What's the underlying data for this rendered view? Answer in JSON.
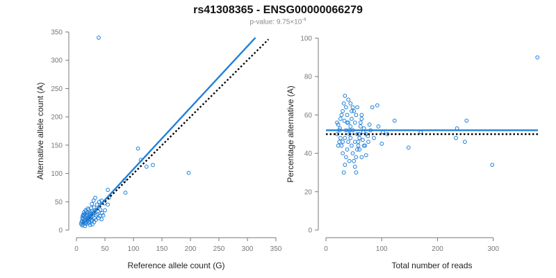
{
  "title": "rs41308365 - ENSG00000066279",
  "subtitle": {
    "prefix": "p-value: 9.75×10",
    "exponent": "-4"
  },
  "colors": {
    "points": "#1f7fd8",
    "fit": "#1f7fd8",
    "reference": "#000000",
    "axis": "#777777"
  },
  "chart_data": [
    {
      "type": "scatter",
      "xlabel": "Reference allele count (G)",
      "ylabel": "Alternative allele count (A)",
      "xlim": [
        0,
        350
      ],
      "ylim": [
        0,
        350
      ],
      "xticks": [
        0,
        50,
        100,
        150,
        200,
        250,
        300,
        350
      ],
      "yticks": [
        0,
        50,
        100,
        150,
        200,
        250,
        300,
        350
      ],
      "points": [
        [
          39,
          340
        ],
        [
          108,
          144
        ],
        [
          113,
          124
        ],
        [
          123,
          112
        ],
        [
          134,
          115
        ],
        [
          197,
          101
        ],
        [
          84,
          88
        ],
        [
          86,
          66
        ],
        [
          55,
          71
        ],
        [
          57,
          57
        ],
        [
          55,
          45
        ],
        [
          44,
          52
        ],
        [
          40,
          50
        ],
        [
          49,
          47
        ],
        [
          33,
          57
        ],
        [
          30,
          52
        ],
        [
          27,
          46
        ],
        [
          36,
          45
        ],
        [
          31,
          40
        ],
        [
          26,
          39
        ],
        [
          21,
          36
        ],
        [
          24,
          31
        ],
        [
          19,
          31
        ],
        [
          17,
          33
        ],
        [
          15,
          29
        ],
        [
          22,
          28
        ],
        [
          28,
          28
        ],
        [
          18,
          26
        ],
        [
          13,
          24
        ],
        [
          16,
          23
        ],
        [
          20,
          22
        ],
        [
          25,
          22
        ],
        [
          12,
          20
        ],
        [
          14,
          18
        ],
        [
          19,
          17
        ],
        [
          10,
          16
        ],
        [
          12,
          13
        ],
        [
          15,
          12
        ],
        [
          11,
          10
        ],
        [
          17,
          11
        ],
        [
          22,
          13
        ],
        [
          27,
          16
        ],
        [
          32,
          21
        ],
        [
          35,
          26
        ],
        [
          41,
          25
        ],
        [
          45,
          30
        ],
        [
          42,
          36
        ],
        [
          38,
          33
        ],
        [
          30,
          31
        ],
        [
          29,
          26
        ],
        [
          23,
          19
        ],
        [
          18,
          14
        ],
        [
          13,
          15
        ],
        [
          10,
          21
        ],
        [
          14,
          27
        ],
        [
          16,
          35
        ],
        [
          20,
          38
        ],
        [
          24,
          24
        ],
        [
          26,
          18
        ],
        [
          21,
          16
        ],
        [
          34,
          18
        ],
        [
          37,
          28
        ],
        [
          47,
          26
        ],
        [
          50,
          35
        ],
        [
          31,
          14
        ],
        [
          28,
          10
        ],
        [
          24,
          9
        ],
        [
          15,
          7
        ],
        [
          10,
          8
        ],
        [
          8,
          11
        ],
        [
          9,
          14
        ],
        [
          11,
          25
        ],
        [
          13,
          31
        ],
        [
          19,
          21
        ],
        [
          23,
          25
        ],
        [
          27,
          33
        ],
        [
          33,
          35
        ],
        [
          39,
          21
        ],
        [
          44,
          19
        ],
        [
          25,
          29
        ],
        [
          17,
          19
        ],
        [
          12,
          27
        ]
      ],
      "fit_line": {
        "x": [
          12,
          314
        ],
        "y": [
          12,
          340
        ]
      },
      "reference_line": {
        "x": [
          12,
          337
        ],
        "y": [
          12,
          337
        ]
      }
    },
    {
      "type": "scatter",
      "xlabel": "Total number of reads",
      "ylabel": "Percentage alternative (A)",
      "xlim": [
        0,
        380
      ],
      "ylim": [
        0,
        100
      ],
      "xticks": [
        0,
        100,
        200,
        300
      ],
      "yticks": [
        0,
        20,
        40,
        60,
        80,
        100
      ],
      "points": [
        [
          379,
          90
        ],
        [
          252,
          57
        ],
        [
          235,
          53
        ],
        [
          233,
          48
        ],
        [
          249,
          46
        ],
        [
          298,
          34
        ],
        [
          148,
          43
        ],
        [
          123,
          57
        ],
        [
          102,
          51
        ],
        [
          100,
          45
        ],
        [
          92,
          65
        ],
        [
          83,
          64
        ],
        [
          78,
          55
        ],
        [
          75,
          49
        ],
        [
          72,
          39
        ],
        [
          70,
          44
        ],
        [
          67,
          51
        ],
        [
          64,
          60
        ],
        [
          62,
          56
        ],
        [
          60,
          48
        ],
        [
          58,
          44
        ],
        [
          56,
          64
        ],
        [
          54,
          60
        ],
        [
          52,
          56
        ],
        [
          50,
          62
        ],
        [
          48,
          52
        ],
        [
          46,
          58
        ],
        [
          44,
          54
        ],
        [
          42,
          50
        ],
        [
          40,
          46
        ],
        [
          38,
          42
        ],
        [
          36,
          38
        ],
        [
          34,
          34
        ],
        [
          32,
          30
        ],
        [
          30,
          40
        ],
        [
          28,
          44
        ],
        [
          26,
          48
        ],
        [
          24,
          52
        ],
        [
          22,
          55
        ],
        [
          20,
          50
        ],
        [
          30,
          62
        ],
        [
          32,
          66
        ],
        [
          34,
          70
        ],
        [
          36,
          64
        ],
        [
          38,
          60
        ],
        [
          40,
          56
        ],
        [
          42,
          52
        ],
        [
          44,
          48
        ],
        [
          46,
          44
        ],
        [
          48,
          40
        ],
        [
          50,
          36
        ],
        [
          52,
          33
        ],
        [
          54,
          38
        ],
        [
          56,
          42
        ],
        [
          58,
          46
        ],
        [
          60,
          50
        ],
        [
          62,
          54
        ],
        [
          64,
          58
        ],
        [
          66,
          47
        ],
        [
          68,
          53
        ],
        [
          26,
          58
        ],
        [
          28,
          60
        ],
        [
          24,
          46
        ],
        [
          22,
          44
        ],
        [
          20,
          56
        ],
        [
          34,
          48
        ],
        [
          36,
          52
        ],
        [
          40,
          68
        ],
        [
          44,
          66
        ],
        [
          48,
          64
        ],
        [
          52,
          46
        ],
        [
          56,
          50
        ],
        [
          60,
          42
        ],
        [
          64,
          38
        ],
        [
          68,
          44
        ],
        [
          72,
          50
        ],
        [
          76,
          46
        ],
        [
          80,
          52
        ],
        [
          86,
          48
        ],
        [
          94,
          54
        ],
        [
          110,
          50
        ],
        [
          170,
          51
        ],
        [
          30,
          46
        ],
        [
          38,
          56
        ],
        [
          46,
          62
        ],
        [
          54,
          30
        ],
        [
          42,
          36
        ],
        [
          33,
          57
        ],
        [
          25,
          53
        ]
      ],
      "fit_line": {
        "x": [
          0,
          380
        ],
        "y": [
          52,
          52
        ]
      },
      "reference_line": {
        "x": [
          0,
          380
        ],
        "y": [
          50,
          50
        ]
      }
    }
  ]
}
